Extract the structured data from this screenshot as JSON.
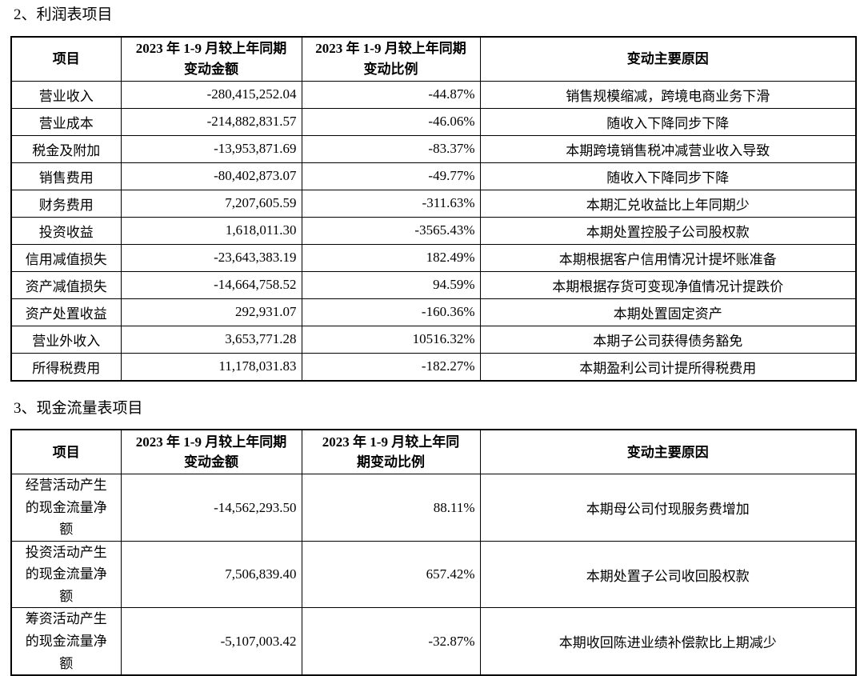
{
  "page": {
    "section2_title": "2、利润表项目",
    "section3_title": "3、现金流量表项目"
  },
  "profit_table": {
    "headers": {
      "item": "项目",
      "amount_line1": "2023 年 1-9 月较上年同期",
      "amount_line2": "变动金额",
      "ratio_line1": "2023 年 1-9 月较上年同期",
      "ratio_line2": "变动比例",
      "reason": "变动主要原因"
    },
    "rows": [
      {
        "item": "营业收入",
        "amount": "-280,415,252.04",
        "ratio": "-44.87%",
        "reason": "销售规模缩减，跨境电商业务下滑"
      },
      {
        "item": "营业成本",
        "amount": "-214,882,831.57",
        "ratio": "-46.06%",
        "reason": "随收入下降同步下降"
      },
      {
        "item": "税金及附加",
        "amount": "-13,953,871.69",
        "ratio": "-83.37%",
        "reason": "本期跨境销售税冲减营业收入导致"
      },
      {
        "item": "销售费用",
        "amount": "-80,402,873.07",
        "ratio": "-49.77%",
        "reason": "随收入下降同步下降"
      },
      {
        "item": "财务费用",
        "amount": "7,207,605.59",
        "ratio": "-311.63%",
        "reason": "本期汇兑收益比上年同期少"
      },
      {
        "item": "投资收益",
        "amount": "1,618,011.30",
        "ratio": "-3565.43%",
        "reason": "本期处置控股子公司股权款"
      },
      {
        "item": "信用减值损失",
        "amount": "-23,643,383.19",
        "ratio": "182.49%",
        "reason": "本期根据客户信用情况计提坏账准备"
      },
      {
        "item": "资产减值损失",
        "amount": "-14,664,758.52",
        "ratio": "94.59%",
        "reason": "本期根据存货可变现净值情况计提跌价"
      },
      {
        "item": "资产处置收益",
        "amount": "292,931.07",
        "ratio": "-160.36%",
        "reason": "本期处置固定资产"
      },
      {
        "item": "营业外收入",
        "amount": "3,653,771.28",
        "ratio": "10516.32%",
        "reason": "本期子公司获得债务豁免"
      },
      {
        "item": "所得税费用",
        "amount": "11,178,031.83",
        "ratio": "-182.27%",
        "reason": "本期盈利公司计提所得税费用"
      }
    ]
  },
  "cashflow_table": {
    "headers": {
      "item": "项目",
      "amount_line1": "2023 年 1-9 月较上年同期",
      "amount_line2": "变动金额",
      "ratio_line1": "2023 年 1-9 月较上年同",
      "ratio_line2": "期变动比例",
      "reason": "变动主要原因"
    },
    "rows": [
      {
        "item": "经营活动产生的现金流量净额",
        "amount": "-14,562,293.50",
        "ratio": "88.11%",
        "reason": "本期母公司付现服务费增加"
      },
      {
        "item": "投资活动产生的现金流量净额",
        "amount": "7,506,839.40",
        "ratio": "657.42%",
        "reason": "本期处置子公司收回股权款"
      },
      {
        "item": "筹资活动产生的现金流量净额",
        "amount": "-5,107,003.42",
        "ratio": "-32.87%",
        "reason": "本期收回陈进业绩补偿款比上期减少"
      }
    ]
  }
}
